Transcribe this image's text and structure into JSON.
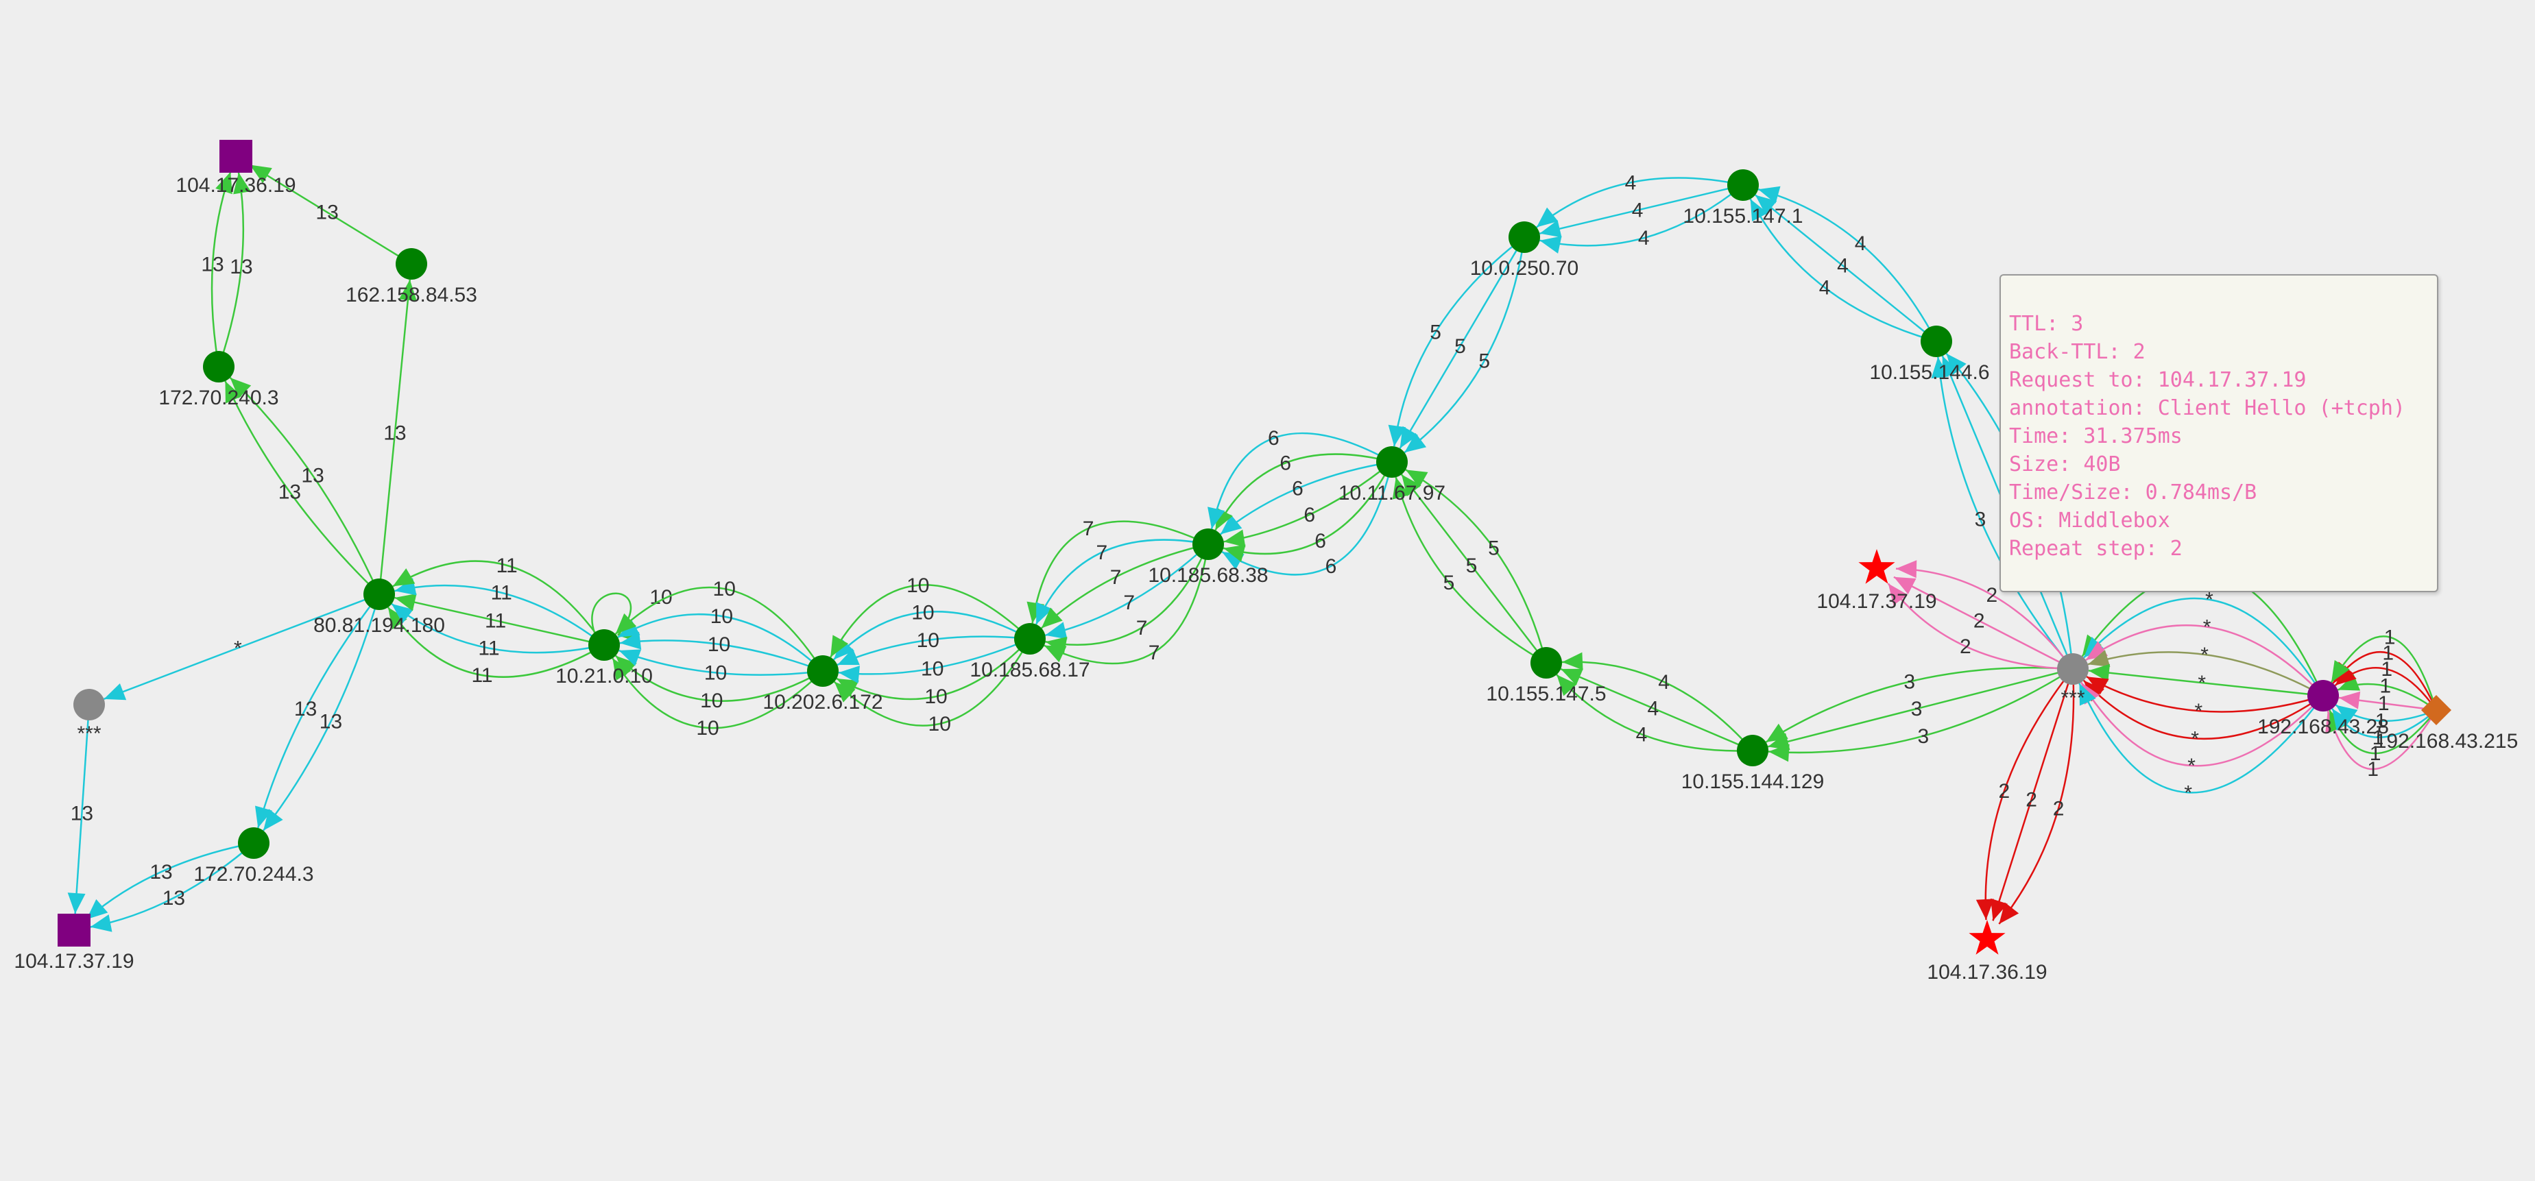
{
  "colors": {
    "background": "#eeeeee",
    "router": "#008000",
    "unknown": "#888888",
    "target_square": "#800080",
    "target_star": "#ff0000",
    "source": "#800080",
    "client": "#d2691e",
    "edge_cyan": "#1ec8d8",
    "edge_green": "#3cc83c",
    "edge_red": "#e01010",
    "edge_pink": "#ee6fb2",
    "edge_olive": "#8e9a5a",
    "tooltip_text": "#ee6fb2",
    "tooltip_bg": "#f6f6ee"
  },
  "nodes": [
    {
      "id": "sq1",
      "label": "104.17.36.19",
      "shape": "square",
      "color": "#800080"
    },
    {
      "id": "n162",
      "label": "162.158.84.53",
      "shape": "circle",
      "color": "#008000"
    },
    {
      "id": "n172a",
      "label": "172.70.240.3",
      "shape": "circle",
      "color": "#008000"
    },
    {
      "id": "n80",
      "label": "80.81.194.180",
      "shape": "circle",
      "color": "#008000"
    },
    {
      "id": "g1",
      "label": "***",
      "shape": "circle",
      "color": "#888888"
    },
    {
      "id": "sq2",
      "label": "104.17.37.19",
      "shape": "square",
      "color": "#800080"
    },
    {
      "id": "n172b",
      "label": "172.70.244.3",
      "shape": "circle",
      "color": "#008000"
    },
    {
      "id": "n1021",
      "label": "10.21.0.10",
      "shape": "circle",
      "color": "#008000"
    },
    {
      "id": "n10202",
      "label": "10.202.6.172",
      "shape": "circle",
      "color": "#008000"
    },
    {
      "id": "n1018517",
      "label": "10.185.68.17",
      "shape": "circle",
      "color": "#008000"
    },
    {
      "id": "n1018538",
      "label": "10.185.68.38",
      "shape": "circle",
      "color": "#008000"
    },
    {
      "id": "n1011",
      "label": "10.11.67.97",
      "shape": "circle",
      "color": "#008000"
    },
    {
      "id": "n100250",
      "label": "10.0.250.70",
      "shape": "circle",
      "color": "#008000"
    },
    {
      "id": "n1015571",
      "label": "10.155.147.1",
      "shape": "circle",
      "color": "#008000"
    },
    {
      "id": "n1015544",
      "label": "10.155.144.6",
      "shape": "circle",
      "color": "#008000"
    },
    {
      "id": "n1015575",
      "label": "10.155.147.5",
      "shape": "circle",
      "color": "#008000"
    },
    {
      "id": "n10155129",
      "label": "10.155.144.129",
      "shape": "circle",
      "color": "#008000"
    },
    {
      "id": "g2",
      "label": "***",
      "shape": "circle",
      "color": "#888888"
    },
    {
      "id": "st1",
      "label": "104.17.37.19",
      "shape": "star",
      "color": "#ff0000"
    },
    {
      "id": "st2",
      "label": "104.17.36.19",
      "shape": "star",
      "color": "#ff0000"
    },
    {
      "id": "src",
      "label": "192.168.43.28",
      "shape": "circle",
      "color": "#800080"
    },
    {
      "id": "cli",
      "label": "192.168.43.215",
      "shape": "diamond",
      "color": "#d2691e"
    }
  ],
  "edges": [
    {
      "from": "n162",
      "to": "sq1",
      "label": "13",
      "color": "#3cc83c"
    },
    {
      "from": "n172a",
      "to": "sq1",
      "label": "13",
      "color": "#3cc83c"
    },
    {
      "from": "n172a",
      "to": "sq1",
      "label": "13",
      "color": "#3cc83c"
    },
    {
      "from": "n80",
      "to": "n172a",
      "label": "13",
      "color": "#3cc83c"
    },
    {
      "from": "n80",
      "to": "n172a",
      "label": "13",
      "color": "#3cc83c"
    },
    {
      "from": "n80",
      "to": "n162",
      "label": "13",
      "color": "#3cc83c"
    },
    {
      "from": "n80",
      "to": "g1",
      "label": "*",
      "color": "#1ec8d8"
    },
    {
      "from": "g1",
      "to": "sq2",
      "label": "13",
      "color": "#1ec8d8"
    },
    {
      "from": "n80",
      "to": "n172b",
      "label": "13",
      "color": "#1ec8d8"
    },
    {
      "from": "n80",
      "to": "n172b",
      "label": "13",
      "color": "#1ec8d8"
    },
    {
      "from": "n172b",
      "to": "sq2",
      "label": "13",
      "color": "#1ec8d8"
    },
    {
      "from": "n172b",
      "to": "sq2",
      "label": "13",
      "color": "#1ec8d8"
    },
    {
      "from": "n1021",
      "to": "n80",
      "label": "11",
      "color": "#3cc83c"
    },
    {
      "from": "n1021",
      "to": "n80",
      "label": "11",
      "color": "#1ec8d8"
    },
    {
      "from": "n1021",
      "to": "n80",
      "label": "11",
      "color": "#3cc83c"
    },
    {
      "from": "n1021",
      "to": "n80",
      "label": "11",
      "color": "#1ec8d8"
    },
    {
      "from": "n1021",
      "to": "n80",
      "label": "11",
      "color": "#3cc83c"
    },
    {
      "from": "n1021",
      "to": "n1021",
      "label": "10",
      "color": "#3cc83c"
    },
    {
      "from": "n10202",
      "to": "n1021",
      "label": "10",
      "color": "#3cc83c"
    },
    {
      "from": "n10202",
      "to": "n1021",
      "label": "10",
      "color": "#3cc83c"
    },
    {
      "from": "n10202",
      "to": "n1021",
      "label": "10",
      "color": "#1ec8d8"
    },
    {
      "from": "n10202",
      "to": "n1021",
      "label": "10",
      "color": "#1ec8d8"
    },
    {
      "from": "n10202",
      "to": "n1021",
      "label": "10",
      "color": "#1ec8d8"
    },
    {
      "from": "n10202",
      "to": "n1021",
      "label": "10",
      "color": "#3cc83c"
    },
    {
      "from": "n1018517",
      "to": "n10202",
      "label": "10",
      "color": "#3cc83c"
    },
    {
      "from": "n1018517",
      "to": "n10202",
      "label": "10",
      "color": "#3cc83c"
    },
    {
      "from": "n1018517",
      "to": "n10202",
      "label": "10",
      "color": "#1ec8d8"
    },
    {
      "from": "n1018517",
      "to": "n10202",
      "label": "10",
      "color": "#1ec8d8"
    },
    {
      "from": "n1018517",
      "to": "n10202",
      "label": "10",
      "color": "#1ec8d8"
    },
    {
      "from": "n1018517",
      "to": "n10202",
      "label": "10",
      "color": "#3cc83c"
    },
    {
      "from": "n1018538",
      "to": "n1018517",
      "label": "7",
      "color": "#3cc83c"
    },
    {
      "from": "n1018538",
      "to": "n1018517",
      "label": "7",
      "color": "#1ec8d8"
    },
    {
      "from": "n1018538",
      "to": "n1018517",
      "label": "7",
      "color": "#3cc83c"
    },
    {
      "from": "n1018538",
      "to": "n1018517",
      "label": "7",
      "color": "#1ec8d8"
    },
    {
      "from": "n1018538",
      "to": "n1018517",
      "label": "7",
      "color": "#3cc83c"
    },
    {
      "from": "n1018538",
      "to": "n1018517",
      "label": "7",
      "color": "#3cc83c"
    },
    {
      "from": "n1011",
      "to": "n1018538",
      "label": "6",
      "color": "#1ec8d8"
    },
    {
      "from": "n1011",
      "to": "n1018538",
      "label": "6",
      "color": "#3cc83c"
    },
    {
      "from": "n1011",
      "to": "n1018538",
      "label": "6",
      "color": "#3cc83c"
    },
    {
      "from": "n1011",
      "to": "n1018538",
      "label": "6",
      "color": "#1ec8d8"
    },
    {
      "from": "n1011",
      "to": "n1018538",
      "label": "6",
      "color": "#3cc83c"
    },
    {
      "from": "n1011",
      "to": "n1018538",
      "label": "6",
      "color": "#1ec8d8"
    },
    {
      "from": "n100250",
      "to": "n1011",
      "label": "5",
      "color": "#1ec8d8"
    },
    {
      "from": "n100250",
      "to": "n1011",
      "label": "5",
      "color": "#1ec8d8"
    },
    {
      "from": "n100250",
      "to": "n1011",
      "label": "5",
      "color": "#1ec8d8"
    },
    {
      "from": "n1015571",
      "to": "n100250",
      "label": "4",
      "color": "#1ec8d8"
    },
    {
      "from": "n1015571",
      "to": "n100250",
      "label": "4",
      "color": "#1ec8d8"
    },
    {
      "from": "n1015571",
      "to": "n100250",
      "label": "4",
      "color": "#1ec8d8"
    },
    {
      "from": "n1015544",
      "to": "n1015571",
      "label": "4",
      "color": "#1ec8d8"
    },
    {
      "from": "n1015544",
      "to": "n1015571",
      "label": "4",
      "color": "#1ec8d8"
    },
    {
      "from": "n1015544",
      "to": "n1015571",
      "label": "4",
      "color": "#1ec8d8"
    },
    {
      "from": "g2",
      "to": "n1015544",
      "label": "3",
      "color": "#1ec8d8"
    },
    {
      "from": "g2",
      "to": "n1015544",
      "label": "3",
      "color": "#1ec8d8"
    },
    {
      "from": "g2",
      "to": "n1015544",
      "label": "3",
      "color": "#1ec8d8"
    },
    {
      "from": "n1015575",
      "to": "n1011",
      "label": "5",
      "color": "#3cc83c"
    },
    {
      "from": "n1015575",
      "to": "n1011",
      "label": "5",
      "color": "#3cc83c"
    },
    {
      "from": "n1015575",
      "to": "n1011",
      "label": "5",
      "color": "#3cc83c"
    },
    {
      "from": "n10155129",
      "to": "n1015575",
      "label": "4",
      "color": "#3cc83c"
    },
    {
      "from": "n10155129",
      "to": "n1015575",
      "label": "4",
      "color": "#3cc83c"
    },
    {
      "from": "n10155129",
      "to": "n1015575",
      "label": "4",
      "color": "#3cc83c"
    },
    {
      "from": "g2",
      "to": "n10155129",
      "label": "3",
      "color": "#3cc83c"
    },
    {
      "from": "g2",
      "to": "n10155129",
      "label": "3",
      "color": "#3cc83c"
    },
    {
      "from": "g2",
      "to": "n10155129",
      "label": "3",
      "color": "#3cc83c"
    },
    {
      "from": "g2",
      "to": "st1",
      "label": "2",
      "color": "#ee6fb2"
    },
    {
      "from": "g2",
      "to": "st1",
      "label": "2",
      "color": "#ee6fb2"
    },
    {
      "from": "g2",
      "to": "st1",
      "label": "2",
      "color": "#ee6fb2"
    },
    {
      "from": "g2",
      "to": "st2",
      "label": "2",
      "color": "#e01010"
    },
    {
      "from": "g2",
      "to": "st2",
      "label": "2",
      "color": "#e01010"
    },
    {
      "from": "g2",
      "to": "st2",
      "label": "2",
      "color": "#e01010"
    },
    {
      "from": "src",
      "to": "g2",
      "label": "*",
      "color": "#3cc83c"
    },
    {
      "from": "src",
      "to": "g2",
      "label": "*",
      "color": "#1ec8d8"
    },
    {
      "from": "src",
      "to": "g2",
      "label": "*",
      "color": "#ee6fb2"
    },
    {
      "from": "src",
      "to": "g2",
      "label": "*",
      "color": "#8e9a5a"
    },
    {
      "from": "src",
      "to": "g2",
      "label": "*",
      "color": "#3cc83c"
    },
    {
      "from": "src",
      "to": "g2",
      "label": "*",
      "color": "#e01010"
    },
    {
      "from": "src",
      "to": "g2",
      "label": "*",
      "color": "#e01010"
    },
    {
      "from": "src",
      "to": "g2",
      "label": "*",
      "color": "#ee6fb2"
    },
    {
      "from": "src",
      "to": "g2",
      "label": "*",
      "color": "#1ec8d8"
    },
    {
      "from": "cli",
      "to": "src",
      "label": "1",
      "color": "#ee6fb2"
    },
    {
      "from": "cli",
      "to": "src",
      "label": "1",
      "color": "#3cc83c"
    },
    {
      "from": "cli",
      "to": "src",
      "label": "1",
      "color": "#1ec8d8"
    },
    {
      "from": "cli",
      "to": "src",
      "label": "1",
      "color": "#1ec8d8"
    },
    {
      "from": "cli",
      "to": "src",
      "label": "1",
      "color": "#ee6fb2"
    },
    {
      "from": "cli",
      "to": "src",
      "label": "1",
      "color": "#3cc83c"
    },
    {
      "from": "cli",
      "to": "src",
      "label": "1",
      "color": "#e01010"
    },
    {
      "from": "cli",
      "to": "src",
      "label": "1",
      "color": "#e01010"
    },
    {
      "from": "cli",
      "to": "src",
      "label": "1",
      "color": "#3cc83c"
    }
  ],
  "tooltip": {
    "lines": [
      "TTL: 3",
      "Back-TTL: 2",
      "Request to: 104.17.37.19",
      "annotation: Client Hello (+tcph)",
      "Time: 31.375ms",
      "Size: 40B",
      "Time/Size: 0.784ms/B",
      "OS: Middlebox",
      "Repeat step: 2"
    ]
  }
}
